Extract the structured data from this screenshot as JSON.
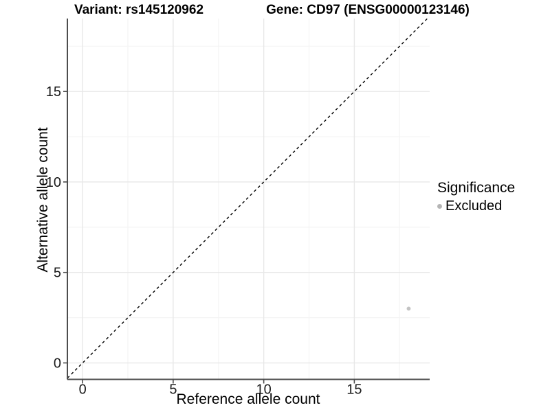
{
  "figure": {
    "title_left": "Variant: rs145120962",
    "title_right": "Gene: CD97 (ENSG00000123146)"
  },
  "chart_data": {
    "type": "scatter",
    "title": "Variant: rs145120962   Gene: CD97 (ENSG00000123146)",
    "xlabel": "Reference allele count",
    "ylabel": "Alternative allele count",
    "xlim": [
      -0.84,
      19.16
    ],
    "ylim": [
      -0.91,
      19.03
    ],
    "xticks": [
      0,
      5,
      10,
      15
    ],
    "yticks": [
      0,
      5,
      10,
      15
    ],
    "x_minor_gridlines": [
      2.5,
      7.5,
      12.5,
      17.5
    ],
    "y_minor_gridlines": [
      2.5,
      7.5,
      12.5,
      17.5
    ],
    "grid": true,
    "identity_line": {
      "equation": "y = x",
      "style": "dashed",
      "color": "#000000"
    },
    "legend": {
      "title": "Significance",
      "position": "right",
      "items": [
        {
          "label": "Excluded",
          "color": "#b5b5b5"
        }
      ]
    },
    "series": [
      {
        "name": "Excluded",
        "color": "#c3c3c3",
        "points": [
          [
            18,
            3
          ]
        ]
      }
    ],
    "colors": {
      "grid_major": "#e8e8e8",
      "grid_minor": "#f4f4f4",
      "axis_line": "#4d4d4d",
      "tick_text": "#1a1a1a",
      "background": "#ffffff"
    }
  }
}
